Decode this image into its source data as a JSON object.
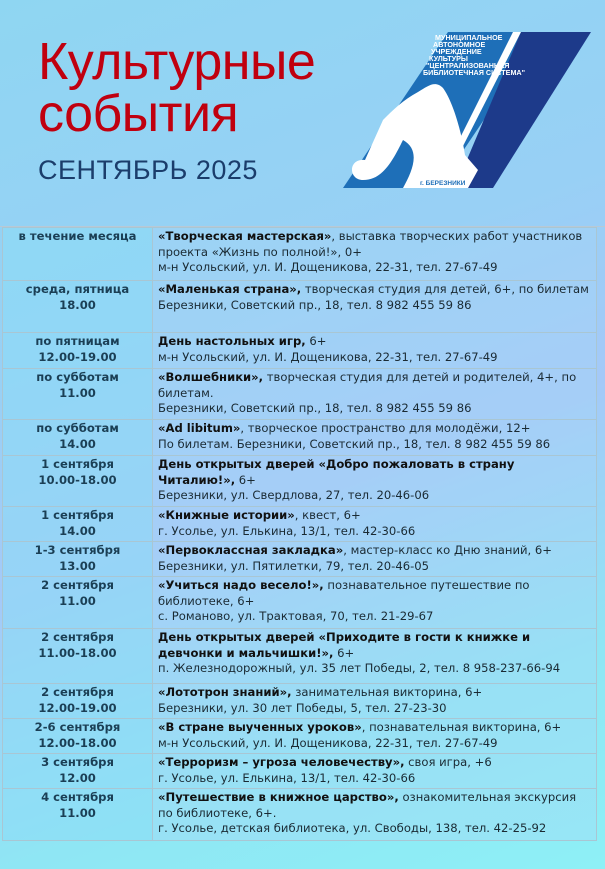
{
  "header": {
    "title_line1": "Культурные",
    "title_line2": "события",
    "month": "СЕНТЯБРЬ 2025"
  },
  "logo": {
    "text_lines": [
      "МУНИЦИПАЛЬНОЕ",
      "АВТОНОМНОЕ",
      "УЧРЕЖДЕНИЕ",
      "КУЛЬТУРЫ",
      "\"ЦЕНТРАЛИЗОВАННАЯ",
      "БИБЛИОТЕЧНАЯ СИСТЕМА\""
    ],
    "city": "г. БЕРЕЗНИКИ",
    "colors": {
      "main": "#1e6fb8",
      "stripe": "#1d3a8a"
    }
  },
  "events": [
    {
      "date": "в течение месяца",
      "time": "",
      "title": "«Творческая мастерская»",
      "desc": ", выставка творческих работ участников проекта «Жизнь по полной!», 0+",
      "addr": "м-н Усольский, ул. И. Дощеникова, 22-31, тел. 27-67-49"
    },
    {
      "date": "среда, пятница",
      "time": "18.00",
      "title": "«Маленькая страна»,",
      "desc": " творческая студия для детей, 6+, по билетам",
      "addr": "Березники, Советский пр., 18, тел. 8 982 455 59 86"
    },
    {
      "date": "по пятницам",
      "time": "12.00-19.00",
      "title": "День настольных игр,",
      "desc": " 6+",
      "addr": "м-н Усольский, ул. И. Дощеникова, 22-31, тел. 27-67-49"
    },
    {
      "date": "по субботам",
      "time": "11.00",
      "title": "«Волшебники»,",
      "desc": " творческая студия для детей и родителей, 4+, по билетам.",
      "addr": "Березники, Советский пр., 18, тел. 8 982 455 59 86"
    },
    {
      "date": "по субботам",
      "time": "14.00",
      "title": "«Ad libitum»",
      "desc": ", творческое пространство для молодёжи, 12+",
      "addr": "По билетам. Березники, Советский пр., 18, тел. 8 982 455 59 86"
    },
    {
      "date": "1 сентября",
      "time": "10.00-18.00",
      "title": "День открытых дверей «Добро пожаловать в страну Читалию!»,",
      "desc": " 6+",
      "addr": "Березники, ул. Свердлова, 27, тел. 20-46-06"
    },
    {
      "date": "1 сентября",
      "time": "14.00",
      "title": "«Книжные истории»",
      "desc": ", квест, 6+",
      "addr": "г. Усолье, ул. Елькина, 13/1, тел. 42-30-66"
    },
    {
      "date": "1-3 сентября",
      "time": "13.00",
      "title": "«Первоклассная закладка»",
      "desc": ", мастер-класс ко Дню знаний, 6+",
      "addr": "Березники, ул. Пятилетки, 79, тел. 20-46-05"
    },
    {
      "date": "2 сентября",
      "time": "11.00",
      "title": "«Учиться надо весело!»,",
      "desc": " познавательное путешествие по библиотеке, 6+",
      "addr": "с. Романово, ул. Трактовая, 70, тел. 21-29-67"
    },
    {
      "date": "2 сентября",
      "time": "11.00-18.00",
      "title": "День открытых дверей «Приходите в гости к книжке и девчонки и мальчишки!»,",
      "desc": " 6+",
      "addr": "п. Железнодорожный, ул. 35 лет Победы, 2, тел. 8 958-237-66-94"
    },
    {
      "date": "2 сентября",
      "time": "12.00-19.00",
      "title": "«Лототрон знаний»,",
      "desc": " занимательная викторина, 6+",
      "addr": "Березники, ул. 30 лет Победы, 5, тел. 27-23-30"
    },
    {
      "date": "2-6 сентября",
      "time": "12.00-18.00",
      "title": "«В стране выученных уроков»",
      "desc": ", познавательная викторина, 6+",
      "addr": "м-н Усольский, ул. И. Дощеникова, 22-31, тел. 27-67-49"
    },
    {
      "date": "3 сентября",
      "time": "12.00",
      "title": "«Терроризм – угроза человечеству»,",
      "desc": " своя игра, +6",
      "addr": "г. Усолье, ул. Елькина, 13/1, тел. 42-30-66"
    },
    {
      "date": "4 сентября",
      "time": "11.00",
      "title": " «Путешествие в книжное царство»,",
      "desc": " ознакомительная экскурсия по библиотеке, 6+.",
      "addr": " г. Усолье, детская библиотека, ул. Свободы, 138, тел. 42-25-92"
    }
  ]
}
